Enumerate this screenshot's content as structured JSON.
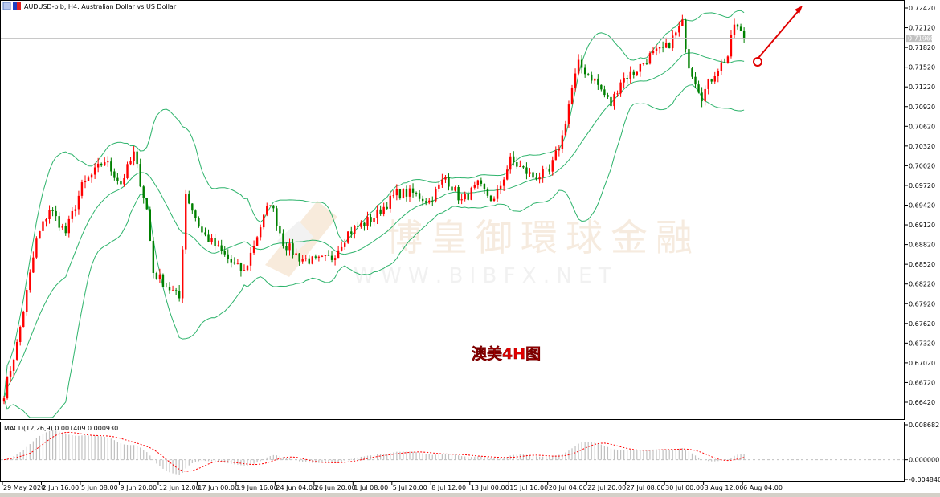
{
  "window": {
    "title": "AUDUSD-bib, H4:  Australian Dollar vs US Dollar",
    "icons": [
      "chart-window-icon",
      "symbol-flag-icon"
    ]
  },
  "annotation": {
    "label": "澳美4H图",
    "label_color": "#e00000",
    "arrow_color": "#e00000",
    "arrow_direction": "up-right"
  },
  "watermark": {
    "cn": "博皇御環球金融",
    "url": "W W W . B I B F X . N E T"
  },
  "colors": {
    "bull_candle": "#ff0000",
    "bear_candle": "#008000",
    "bollinger": "#2db36b",
    "macd_histogram": "#c0c0c0",
    "macd_signal": "#ff0000",
    "current_price_line": "#c0c0c0"
  },
  "chart_data": {
    "type": "candlestick",
    "symbol": "AUDUSD-bib",
    "timeframe": "H4",
    "indicators": [
      "Bollinger Bands",
      "MACD(12,26,9)"
    ],
    "price_axis": {
      "ticks": [
        "0.72420",
        "0.72120",
        "0.71820",
        "0.71520",
        "0.71220",
        "0.70920",
        "0.70620",
        "0.70320",
        "0.70020",
        "0.69720",
        "0.69420",
        "0.69120",
        "0.68820",
        "0.68520",
        "0.68220",
        "0.67920",
        "0.67620",
        "0.67320",
        "0.67020",
        "0.66720",
        "0.66420"
      ],
      "range": [
        0.6622,
        0.7252
      ],
      "current_price": "0.71960"
    },
    "time_axis": {
      "ticks": [
        "29 May 2020",
        "2 Jun 16:00",
        "5 Jun 08:00",
        "9 Jun 20:00",
        "12 Jun 12:00",
        "17 Jun 00:00",
        "19 Jun 16:00",
        "24 Jun 04:00",
        "26 Jun 20:00",
        "1 Jul 08:00",
        "5 Jul 20:00",
        "8 Jul 12:00",
        "13 Jul 00:00",
        "15 Jul 16:00",
        "20 Jul 04:00",
        "22 Jul 20:00",
        "27 Jul 08:00",
        "30 Jul 00:00",
        "3 Aug 12:00",
        "6 Aug 04:00"
      ],
      "bars_per_tick": 12
    },
    "price_path": [
      [
        0,
        0.6656
      ],
      [
        4,
        0.673
      ],
      [
        10,
        0.6888
      ],
      [
        14,
        0.6937
      ],
      [
        19,
        0.69
      ],
      [
        24,
        0.697
      ],
      [
        31,
        0.701
      ],
      [
        36,
        0.6975
      ],
      [
        40,
        0.702
      ],
      [
        44,
        0.6935
      ],
      [
        46,
        0.684
      ],
      [
        51,
        0.6815
      ],
      [
        54,
        0.68
      ],
      [
        56,
        0.696
      ],
      [
        61,
        0.69
      ],
      [
        66,
        0.6875
      ],
      [
        71,
        0.685
      ],
      [
        74,
        0.684
      ],
      [
        79,
        0.691
      ],
      [
        82,
        0.6948
      ],
      [
        86,
        0.6885
      ],
      [
        91,
        0.6862
      ],
      [
        96,
        0.6856
      ],
      [
        101,
        0.6862
      ],
      [
        106,
        0.69
      ],
      [
        114,
        0.6924
      ],
      [
        121,
        0.696
      ],
      [
        126,
        0.696
      ],
      [
        131,
        0.6948
      ],
      [
        136,
        0.6985
      ],
      [
        141,
        0.6948
      ],
      [
        146,
        0.6972
      ],
      [
        151,
        0.6948
      ],
      [
        156,
        0.701
      ],
      [
        163,
        0.6985
      ],
      [
        168,
        0.6991
      ],
      [
        172,
        0.7046
      ],
      [
        175,
        0.712
      ],
      [
        177,
        0.7156
      ],
      [
        182,
        0.7132
      ],
      [
        187,
        0.7095
      ],
      [
        190,
        0.7132
      ],
      [
        194,
        0.7144
      ],
      [
        199,
        0.7169
      ],
      [
        204,
        0.7181
      ],
      [
        209,
        0.7218
      ],
      [
        211,
        0.7156
      ],
      [
        215,
        0.7108
      ],
      [
        219,
        0.7144
      ],
      [
        223,
        0.7169
      ],
      [
        225,
        0.7218
      ],
      [
        228,
        0.7196
      ]
    ],
    "macd": {
      "label": "MACD(12,26,9) 0.001409 0.000930",
      "main": 0.001409,
      "signal": 0.00093,
      "ticks": [
        "0.008682",
        "0.000000",
        "-0.004840"
      ],
      "range": [
        -0.00484,
        0.008682
      ]
    }
  }
}
